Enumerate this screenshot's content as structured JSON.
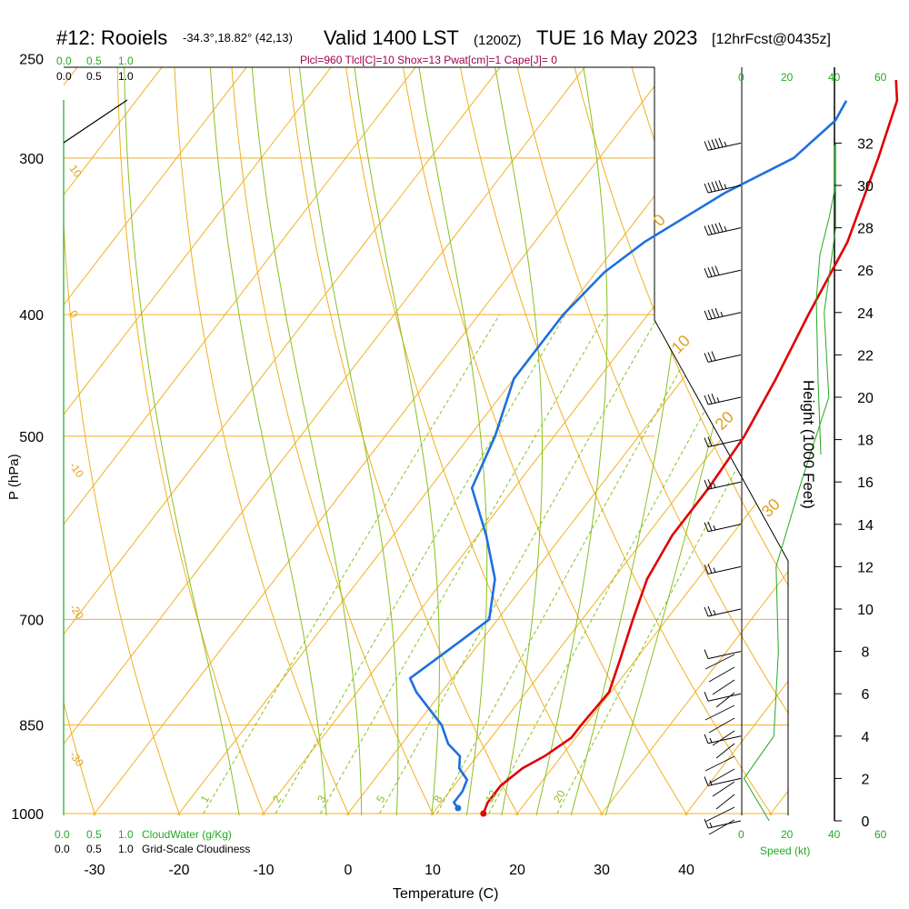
{
  "header": {
    "station": "#12: Rooiels",
    "coords": "-34.3°,18.82° (42,13)",
    "valid": "Valid 1400 LST",
    "utc": "(1200Z)",
    "date": "TUE 16 May 2023",
    "forecast": "[12hrFcst@0435z]"
  },
  "indices": "Plcl=960 Tlcl[C]=10 Shox=13 Pwat[cm]=1 Cape[J]= 0",
  "scale_top_green": [
    "0.0",
    "0.5",
    "1.0"
  ],
  "scale_top_black": [
    "0.0",
    "0.5",
    "1.0"
  ],
  "scale_bottom_green": [
    "0.0",
    "0.5",
    "1.0"
  ],
  "scale_bottom_black": [
    "0.0",
    "0.5",
    "1.0"
  ],
  "cloudwater_label": "CloudWater (g/Kg)",
  "cloudiness_label": "Grid-Scale Cloudiness",
  "speed_label": "Speed (kt)",
  "speed_ticks": [
    "0",
    "20",
    "40",
    "60"
  ],
  "colors": {
    "isotherm": "#f0b020",
    "dry_adiabat": "#f0b020",
    "moist_adiabat": "#88c020",
    "mixing_ratio": "#88c020",
    "temperature": "#e00000",
    "dewpoint": "#1e6fe0",
    "title_text": "#000000",
    "index_text": "#a0004a",
    "scale_green": "#22aa22",
    "isotherm_label": "#e0a020"
  },
  "chart_data": {
    "type": "skew-t",
    "title": "#12: Rooiels -34.3°,18.82° (42,13) Valid 1400 LST (1200Z) TUE 16 May 2023 [12hrFcst@0435z]",
    "xlabel": "Temperature (C)",
    "ylabel": "P (hPa)",
    "y2label": "Height (1000 Feet)",
    "x_ticks": [
      -30,
      -20,
      -10,
      0,
      10,
      20,
      30,
      40
    ],
    "p_ticks": [
      250,
      300,
      400,
      500,
      700,
      850,
      1000
    ],
    "height_ticks": [
      0,
      2,
      4,
      6,
      8,
      10,
      12,
      14,
      16,
      18,
      20,
      22,
      24,
      26,
      28,
      30,
      32
    ],
    "isotherm_labels": [
      "10",
      "0",
      "-10",
      "-20",
      "-30",
      "0",
      "10",
      "20",
      "30"
    ],
    "mixing_ratio_labels": [
      "1",
      "2",
      "3",
      "5",
      "8",
      "12",
      "20"
    ],
    "series": [
      {
        "name": "Temperature",
        "points": [
          [
            1000,
            16
          ],
          [
            980,
            15.5
          ],
          [
            950,
            15.5
          ],
          [
            920,
            16.5
          ],
          [
            900,
            18
          ],
          [
            870,
            19.5
          ],
          [
            850,
            19.5
          ],
          [
            800,
            19.8
          ],
          [
            750,
            18
          ],
          [
            700,
            16
          ],
          [
            650,
            14
          ],
          [
            600,
            13
          ],
          [
            550,
            13
          ],
          [
            500,
            12.5
          ],
          [
            450,
            11
          ],
          [
            400,
            9
          ],
          [
            350,
            7
          ],
          [
            300,
            3
          ],
          [
            270,
            0
          ],
          [
            260,
            -2
          ]
        ]
      },
      {
        "name": "Dewpoint",
        "points": [
          [
            990,
            12.5
          ],
          [
            980,
            11.5
          ],
          [
            960,
            11.5
          ],
          [
            940,
            11
          ],
          [
            920,
            9
          ],
          [
            900,
            8
          ],
          [
            880,
            5.5
          ],
          [
            850,
            3
          ],
          [
            800,
            -3
          ],
          [
            780,
            -5
          ],
          [
            740,
            -3
          ],
          [
            700,
            -1
          ],
          [
            650,
            -4
          ],
          [
            600,
            -9
          ],
          [
            550,
            -15
          ],
          [
            500,
            -17
          ],
          [
            450,
            -20
          ],
          [
            400,
            -20
          ],
          [
            370,
            -19
          ],
          [
            350,
            -17
          ],
          [
            320,
            -12
          ],
          [
            300,
            -7
          ],
          [
            280,
            -5.5
          ],
          [
            270,
            -6
          ]
        ]
      }
    ],
    "wind_barbs": [
      {
        "height_kft": 32,
        "speed_kt": 45
      },
      {
        "height_kft": 30,
        "speed_kt": 45
      },
      {
        "height_kft": 28,
        "speed_kt": 45
      },
      {
        "height_kft": 26,
        "speed_kt": 40
      },
      {
        "height_kft": 24,
        "speed_kt": 35
      },
      {
        "height_kft": 22,
        "speed_kt": 30
      },
      {
        "height_kft": 20,
        "speed_kt": 25
      },
      {
        "height_kft": 18,
        "speed_kt": 20
      },
      {
        "height_kft": 16,
        "speed_kt": 15
      },
      {
        "height_kft": 14,
        "speed_kt": 15
      },
      {
        "height_kft": 12,
        "speed_kt": 15
      },
      {
        "height_kft": 10,
        "speed_kt": 15
      },
      {
        "height_kft": 8,
        "speed_kt": 10
      },
      {
        "height_kft": 6,
        "speed_kt": 10
      },
      {
        "height_kft": 4,
        "speed_kt": 5
      },
      {
        "height_kft": 2,
        "speed_kt": 5
      },
      {
        "height_kft": 0,
        "speed_kt": 5
      }
    ],
    "wind_speed_profile": [
      {
        "height_kft": 0,
        "speed_kt": 12
      },
      {
        "height_kft": 2,
        "speed_kt": 1
      },
      {
        "height_kft": 4,
        "speed_kt": 14
      },
      {
        "height_kft": 8,
        "speed_kt": 16
      },
      {
        "height_kft": 12,
        "speed_kt": 15
      },
      {
        "height_kft": 16,
        "speed_kt": 26
      },
      {
        "height_kft": 20,
        "speed_kt": 38
      },
      {
        "height_kft": 24,
        "speed_kt": 36
      },
      {
        "height_kft": 28,
        "speed_kt": 41
      },
      {
        "height_kft": 30,
        "speed_kt": 41
      },
      {
        "height_kft": 32,
        "speed_kt": 41
      }
    ]
  }
}
